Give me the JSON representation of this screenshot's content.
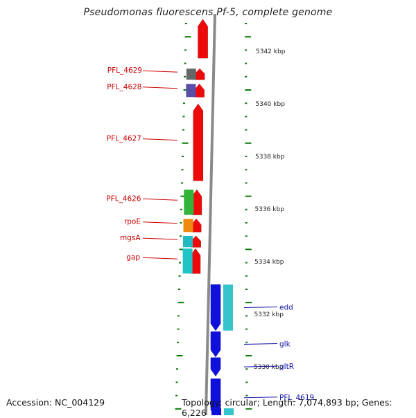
{
  "title": "Pseudomonas fluorescens Pf-5, complete genome",
  "footer": {
    "accession": "Accession: NC_004129",
    "topology": "Topology: circular; Length: 7,074,893 bp; Genes: 6,226"
  },
  "kbp_labels": [
    {
      "text": "5342 kbp",
      "kbp": 5342
    },
    {
      "text": "5340 kbp",
      "kbp": 5340
    },
    {
      "text": "5338 kbp",
      "kbp": 5338
    },
    {
      "text": "5336 kbp",
      "kbp": 5336
    },
    {
      "text": "5334 kbp",
      "kbp": 5334
    },
    {
      "text": "5332 kbp",
      "kbp": 5332
    },
    {
      "text": "5330 kbp",
      "kbp": 5330
    }
  ],
  "left_genes": [
    {
      "name": "PFL_4629",
      "start_kbp": 5341.31,
      "end_kbp": 5340.89,
      "color": "#666666"
    },
    {
      "name": "PFL_4628",
      "start_kbp": 5340.73,
      "end_kbp": 5340.23,
      "color": "#5b4ea8"
    },
    {
      "name": "PFL_4627",
      "start_kbp": 5339.97,
      "end_kbp": 5337.05,
      "color": null
    },
    {
      "name": "PFL_4626",
      "start_kbp": 5336.71,
      "end_kbp": 5335.75,
      "color": "#33b33a"
    },
    {
      "name": "rpoE",
      "start_kbp": 5335.6,
      "end_kbp": 5335.1,
      "color": "#ee8a10"
    },
    {
      "name": "mgsA",
      "start_kbp": 5334.95,
      "end_kbp": 5334.52,
      "color": "#1fbac4"
    },
    {
      "name": "gap",
      "start_kbp": 5334.47,
      "end_kbp": 5333.52,
      "color": "#1fc4c4"
    }
  ],
  "right_genes": [
    {
      "name": "edd",
      "start_kbp": 5333.1,
      "end_kbp": 5331.35,
      "color": "#33c4cc"
    },
    {
      "name": "glk",
      "start_kbp": 5331.31,
      "end_kbp": 5330.35,
      "color": null
    },
    {
      "name": "gltR",
      "start_kbp": 5330.32,
      "end_kbp": 5329.62,
      "color": null
    },
    {
      "name": "PFL_4619",
      "start_kbp": 5329.52,
      "end_kbp": 5328.07,
      "color": null
    }
  ],
  "colors": {
    "forward_cds": "#ee0a0a",
    "reverse_cds": "#1010dd",
    "left_label": "#cc0000",
    "right_label": "#1010aa",
    "backbone": "#8a8a8a",
    "tick": "#0a7a0a"
  }
}
